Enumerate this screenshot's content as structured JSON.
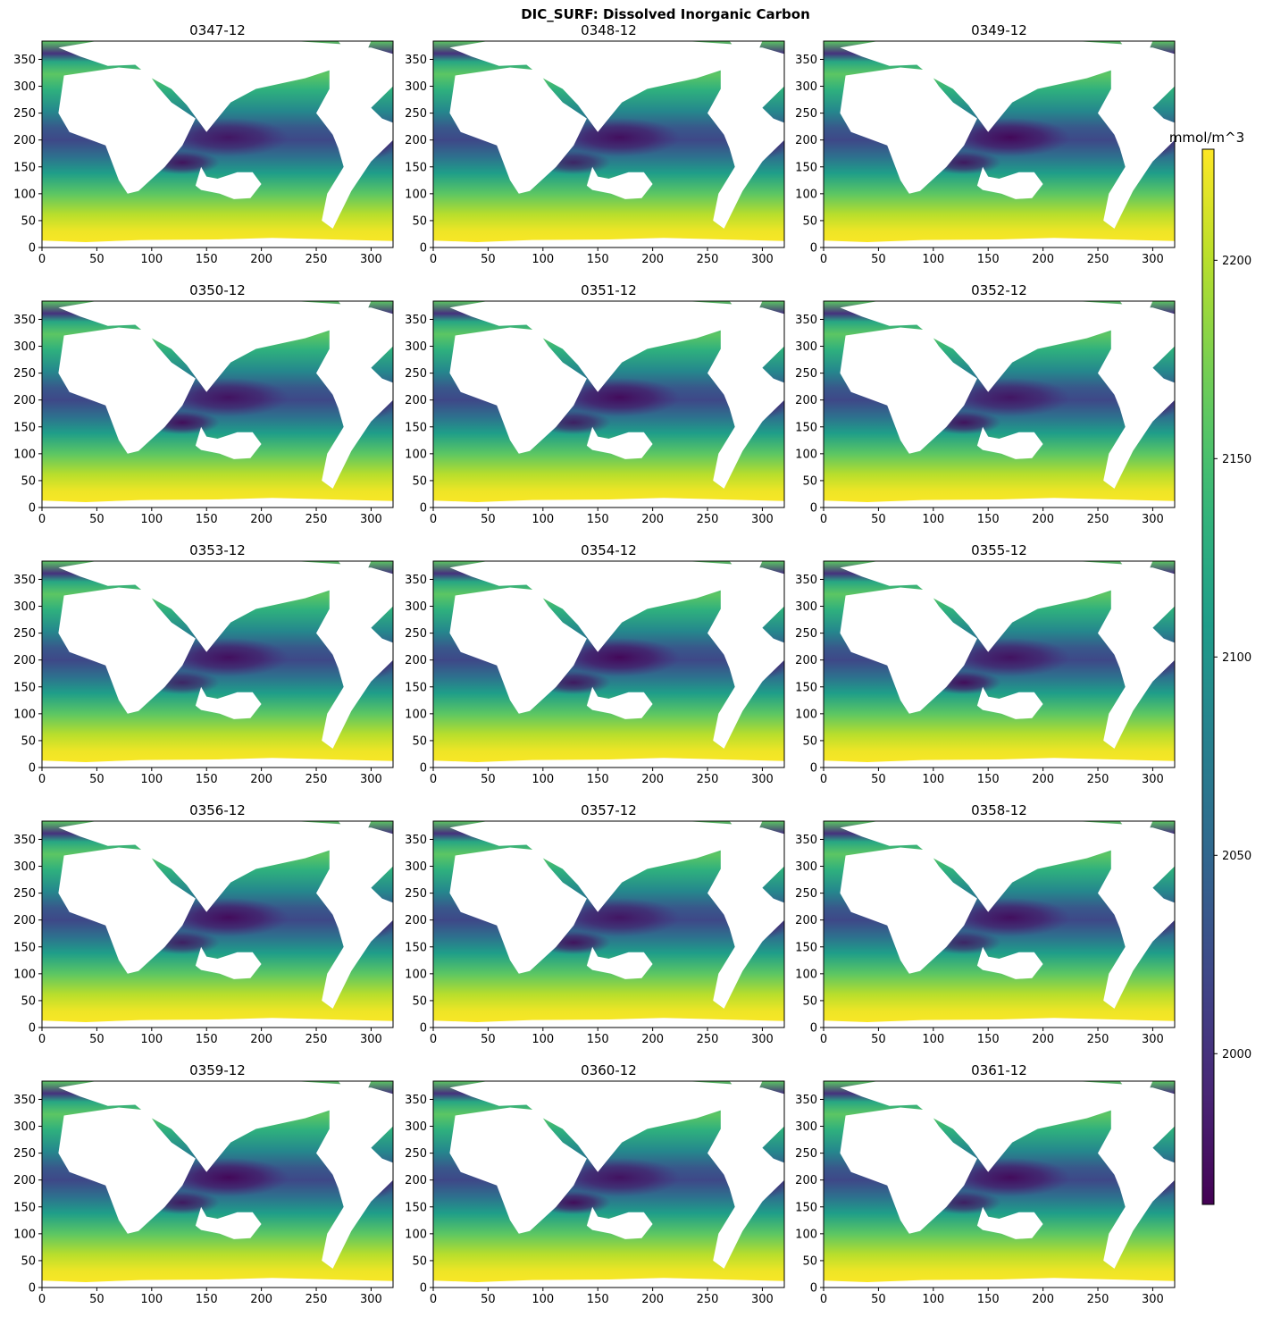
{
  "figure": {
    "title": "DIC_SURF: Dissolved Inorganic Carbon"
  },
  "chart_data": {
    "type": "heatmap",
    "title": "DIC_SURF: Dissolved Inorganic Carbon",
    "colormap": "viridis",
    "colorbar": {
      "label": "mmol/m^3",
      "range": [
        1962,
        2228
      ],
      "ticks": [
        2000,
        2050,
        2100,
        2150,
        2200
      ]
    },
    "xlim": [
      0,
      320
    ],
    "ylim": [
      0,
      384
    ],
    "xticks": [
      0,
      50,
      100,
      150,
      200,
      250,
      300
    ],
    "yticks": [
      0,
      50,
      100,
      150,
      200,
      250,
      300,
      350
    ],
    "panels": [
      {
        "title": "0347-12"
      },
      {
        "title": "0348-12"
      },
      {
        "title": "0349-12"
      },
      {
        "title": "0350-12"
      },
      {
        "title": "0351-12"
      },
      {
        "title": "0352-12"
      },
      {
        "title": "0353-12"
      },
      {
        "title": "0354-12"
      },
      {
        "title": "0355-12"
      },
      {
        "title": "0356-12"
      },
      {
        "title": "0357-12"
      },
      {
        "title": "0358-12"
      },
      {
        "title": "0359-12"
      },
      {
        "title": "0360-12"
      },
      {
        "title": "0361-12"
      }
    ]
  }
}
